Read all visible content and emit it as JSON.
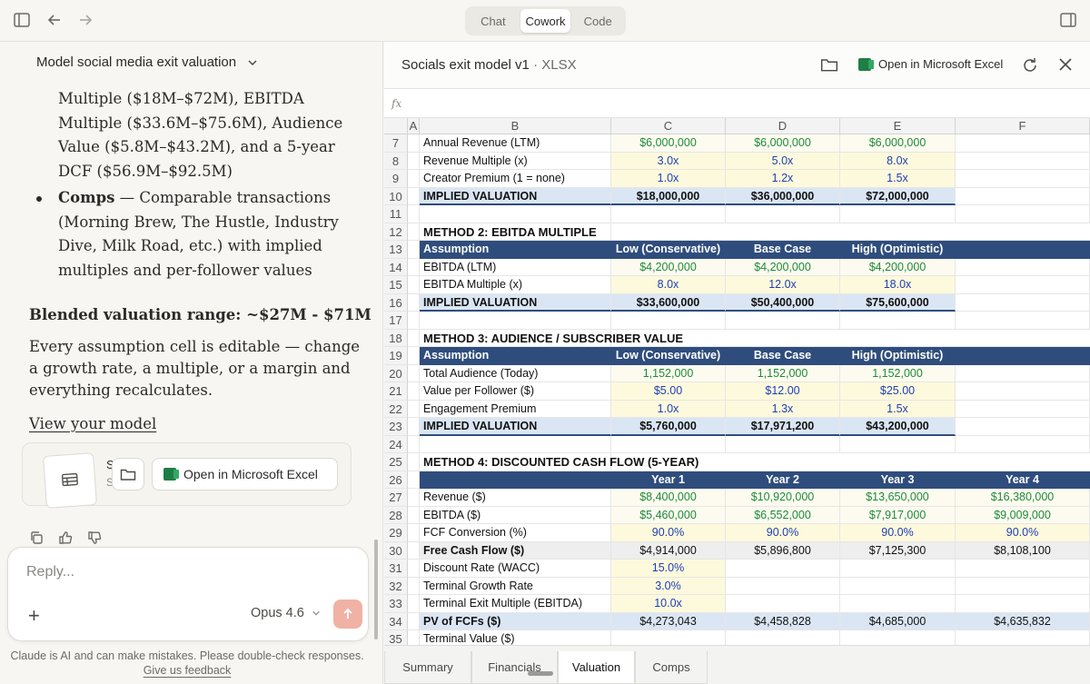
{
  "topbar": {
    "modes": [
      {
        "label": "Chat",
        "active": false
      },
      {
        "label": "Cowork",
        "active": true
      },
      {
        "label": "Code",
        "active": false
      }
    ]
  },
  "conversation": {
    "title": "Model social media exit valuation",
    "para1": [
      "Multiple ($18M–$72M), EBITDA",
      "Multiple ($33.6M–$75.6M), Audience",
      "Value ($5.8M–$43.2M), and a 5-year",
      "DCF ($56.9M–$92.5M)"
    ],
    "comps_bold": "Comps",
    "comps_lines": [
      " — Comparable transactions",
      "(Morning Brew, The Hustle, Industry",
      "Dive, Milk Road, etc.) with implied",
      "multiples and per-follower values"
    ],
    "blended": "Blended valuation range: ~$27M - $71M",
    "para2": [
      "Every assumption cell is editable — change",
      "a growth rate, a multiple, or a margin and",
      "everything recalculates."
    ],
    "view_link": "View your model",
    "artifact": {
      "t1": "S",
      "t2": "S",
      "open_excel": "Open in Microsoft Excel"
    }
  },
  "composer": {
    "placeholder": "Reply...",
    "model": "Opus 4.6"
  },
  "disclaimer": {
    "text": "Claude is AI and can make mistakes. Please double-check responses.",
    "feedback_link": "Give us feedback"
  },
  "viewer": {
    "file_name": "Socials exit model v1",
    "file_ext": " · XLSX",
    "open_excel": "Open in Microsoft Excel",
    "fx_label": "fx"
  },
  "sheet": {
    "columns": [
      "A",
      "B",
      "C",
      "D",
      "E",
      "F"
    ],
    "rows": [
      {
        "n": "7",
        "b": "Annual Revenue (LTM)",
        "c": "$6,000,000",
        "d": "$6,000,000",
        "e": "$6,000,000",
        "f": ""
      },
      {
        "n": "8",
        "b": "Revenue Multiple (x)",
        "c": "3.0x",
        "d": "5.0x",
        "e": "8.0x",
        "f": ""
      },
      {
        "n": "9",
        "b": "Creator Premium (1 = none)",
        "c": "1.0x",
        "d": "1.2x",
        "e": "1.5x",
        "f": ""
      },
      {
        "n": "10",
        "b": "IMPLIED VALUATION",
        "c": "$18,000,000",
        "d": "$36,000,000",
        "e": "$72,000,000",
        "f": ""
      },
      {
        "n": "11",
        "b": "",
        "c": "",
        "d": "",
        "e": "",
        "f": ""
      },
      {
        "n": "12",
        "b": "METHOD 2: EBITDA MULTIPLE",
        "c": "",
        "d": "",
        "e": "",
        "f": ""
      },
      {
        "n": "13",
        "b": "Assumption",
        "c": "Low (Conservative)",
        "d": "Base Case",
        "e": "High (Optimistic)",
        "f": ""
      },
      {
        "n": "14",
        "b": "EBITDA (LTM)",
        "c": "$4,200,000",
        "d": "$4,200,000",
        "e": "$4,200,000",
        "f": ""
      },
      {
        "n": "15",
        "b": "EBITDA Multiple (x)",
        "c": "8.0x",
        "d": "12.0x",
        "e": "18.0x",
        "f": ""
      },
      {
        "n": "16",
        "b": "IMPLIED VALUATION",
        "c": "$33,600,000",
        "d": "$50,400,000",
        "e": "$75,600,000",
        "f": ""
      },
      {
        "n": "17",
        "b": "",
        "c": "",
        "d": "",
        "e": "",
        "f": ""
      },
      {
        "n": "18",
        "b": "METHOD 3: AUDIENCE / SUBSCRIBER VALUE",
        "c": "",
        "d": "",
        "e": "",
        "f": ""
      },
      {
        "n": "19",
        "b": "Assumption",
        "c": "Low (Conservative)",
        "d": "Base Case",
        "e": "High (Optimistic)",
        "f": ""
      },
      {
        "n": "20",
        "b": "Total Audience (Today)",
        "c": "1,152,000",
        "d": "1,152,000",
        "e": "1,152,000",
        "f": ""
      },
      {
        "n": "21",
        "b": "Value per Follower ($)",
        "c": "$5.00",
        "d": "$12.00",
        "e": "$25.00",
        "f": ""
      },
      {
        "n": "22",
        "b": "Engagement Premium",
        "c": "1.0x",
        "d": "1.3x",
        "e": "1.5x",
        "f": ""
      },
      {
        "n": "23",
        "b": "IMPLIED VALUATION",
        "c": "$5,760,000",
        "d": "$17,971,200",
        "e": "$43,200,000",
        "f": ""
      },
      {
        "n": "24",
        "b": "",
        "c": "",
        "d": "",
        "e": "",
        "f": ""
      },
      {
        "n": "25",
        "b": "METHOD 4: DISCOUNTED CASH FLOW (5-YEAR)",
        "c": "",
        "d": "",
        "e": "",
        "f": ""
      },
      {
        "n": "26",
        "b": "",
        "c": "Year 1",
        "d": "Year 2",
        "e": "Year 3",
        "f": "Year 4"
      },
      {
        "n": "27",
        "b": "Revenue ($)",
        "c": "$8,400,000",
        "d": "$10,920,000",
        "e": "$13,650,000",
        "f": "$16,380,000"
      },
      {
        "n": "28",
        "b": "EBITDA ($)",
        "c": "$5,460,000",
        "d": "$6,552,000",
        "e": "$7,917,000",
        "f": "$9,009,000"
      },
      {
        "n": "29",
        "b": "FCF Conversion (%)",
        "c": "90.0%",
        "d": "90.0%",
        "e": "90.0%",
        "f": "90.0%"
      },
      {
        "n": "30",
        "b": "Free Cash Flow ($)",
        "c": "$4,914,000",
        "d": "$5,896,800",
        "e": "$7,125,300",
        "f": "$8,108,100"
      },
      {
        "n": "31",
        "b": "Discount Rate (WACC)",
        "c": "15.0%",
        "d": "",
        "e": "",
        "f": ""
      },
      {
        "n": "32",
        "b": "Terminal Growth Rate",
        "c": "3.0%",
        "d": "",
        "e": "",
        "f": ""
      },
      {
        "n": "33",
        "b": "Terminal Exit Multiple (EBITDA)",
        "c": "10.0x",
        "d": "",
        "e": "",
        "f": ""
      },
      {
        "n": "34",
        "b": "PV of FCFs ($)",
        "c": "$4,273,043",
        "d": "$4,458,828",
        "e": "$4,685,000",
        "f": "$4,635,832"
      },
      {
        "n": "35",
        "b": "Terminal Value ($)",
        "c": "",
        "d": "",
        "e": "",
        "f": ""
      }
    ],
    "tabs": [
      {
        "label": "Summary",
        "active": false
      },
      {
        "label": "Financials",
        "active": false
      },
      {
        "label": "Valuation",
        "active": true
      },
      {
        "label": "Comps",
        "active": false
      }
    ]
  },
  "colors": {
    "header_blue": "#2f4d7c",
    "input_yellow": "#fdf9dc",
    "input_text_blue": "#1d3fb8",
    "formula_green": "#1e8a3a",
    "send_button": "#f0b2a4"
  }
}
